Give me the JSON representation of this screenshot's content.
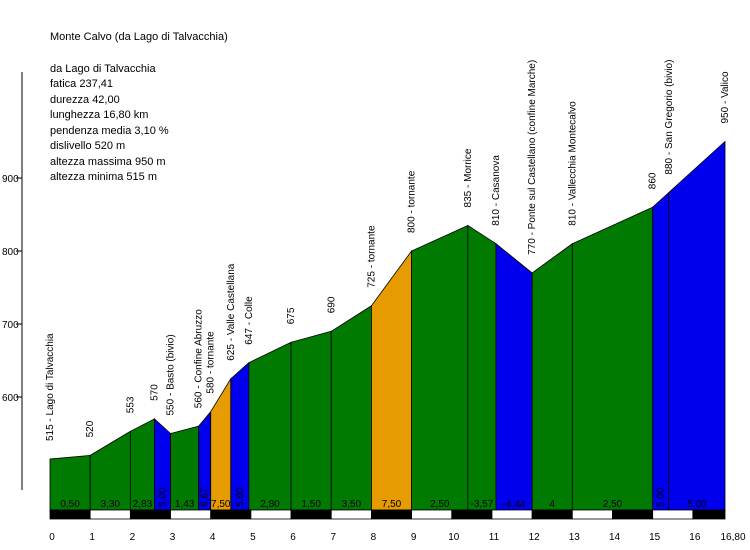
{
  "info": {
    "title": "Monte Calvo (da Lago di Talvacchia)",
    "lines": [
      "da Lago di Talvacchia",
      "fatica 237,41",
      "durezza 42,00",
      "lunghezza 16,80 km",
      "pendenza media 3,10 %",
      "dislivello 520 m",
      "altezza massima 950 m",
      "altezza minima 515 m"
    ]
  },
  "chart_data": {
    "type": "area",
    "title": "Monte Calvo (da Lago di Talvacchia)",
    "xlabel": "",
    "ylabel": "",
    "xlim": [
      0,
      16.8
    ],
    "ylim": [
      465,
      1000
    ],
    "x_ticks": [
      0,
      1,
      2,
      3,
      4,
      5,
      6,
      7,
      8,
      9,
      10,
      11,
      12,
      13,
      14,
      15,
      16
    ],
    "x_end_label": "16,80",
    "y_ticks": [
      600,
      700,
      800,
      900
    ],
    "grid": false,
    "points": [
      {
        "x": 0,
        "y": 515,
        "label": "515 - Lago di Talvacchia"
      },
      {
        "x": 1,
        "y": 520,
        "label": "520"
      },
      {
        "x": 2,
        "y": 553,
        "label": "553"
      },
      {
        "x": 2.6,
        "y": 570,
        "label": "570"
      },
      {
        "x": 3,
        "y": 550,
        "label": "550 - Basto (bivio)"
      },
      {
        "x": 3.7,
        "y": 560,
        "label": "560 - Confine Abruzzo"
      },
      {
        "x": 4,
        "y": 580,
        "label": "580 - tornante"
      },
      {
        "x": 4.5,
        "y": 625,
        "label": "625 - Valle Castellana"
      },
      {
        "x": 4.95,
        "y": 647,
        "label": "647 - Colle"
      },
      {
        "x": 6,
        "y": 675,
        "label": "675"
      },
      {
        "x": 7,
        "y": 690,
        "label": "690"
      },
      {
        "x": 8,
        "y": 725,
        "label": "725 - tornante"
      },
      {
        "x": 9,
        "y": 800,
        "label": "800 - tornante"
      },
      {
        "x": 10.4,
        "y": 835,
        "label": "835 - Morrice"
      },
      {
        "x": 11.1,
        "y": 810,
        "label": "810 - Casanova"
      },
      {
        "x": 12,
        "y": 770,
        "label": "770 - Ponte sul Castellano (confine Marche)"
      },
      {
        "x": 13,
        "y": 810,
        "label": "810 - Vallecchia Montecalvo"
      },
      {
        "x": 15,
        "y": 860,
        "label": "860"
      },
      {
        "x": 15.4,
        "y": 880,
        "label": "880 - San Gregorio (bivio)"
      },
      {
        "x": 16.8,
        "y": 950,
        "label": "950 - Valico"
      }
    ],
    "segments": [
      {
        "grade": "0,50",
        "color": "#007a00"
      },
      {
        "grade": "3,30",
        "color": "#007a00"
      },
      {
        "grade": "2,83",
        "color": "#007a00"
      },
      {
        "grade": "5,00",
        "color": "#0000ee"
      },
      {
        "grade": "1,43",
        "color": "#007a00"
      },
      {
        "grade": "6,67",
        "color": "#0000ee"
      },
      {
        "grade": "7,50",
        "color": "#e69c00"
      },
      {
        "grade": "5,00",
        "color": "#0000ee"
      },
      {
        "grade": "2,80",
        "color": "#007a00"
      },
      {
        "grade": "1,50",
        "color": "#007a00"
      },
      {
        "grade": "3,50",
        "color": "#007a00"
      },
      {
        "grade": "7,50",
        "color": "#e69c00"
      },
      {
        "grade": "2,50",
        "color": "#007a00"
      },
      {
        "grade": "-3,57",
        "color": "#007a00"
      },
      {
        "grade": "-4,44",
        "color": "#0000ee"
      },
      {
        "grade": "4",
        "color": "#007a00"
      },
      {
        "grade": "2,50",
        "color": "#007a00"
      },
      {
        "grade": "5,00",
        "color": "#0000ee"
      },
      {
        "grade": "5,00",
        "color": "#0000ee"
      }
    ]
  }
}
